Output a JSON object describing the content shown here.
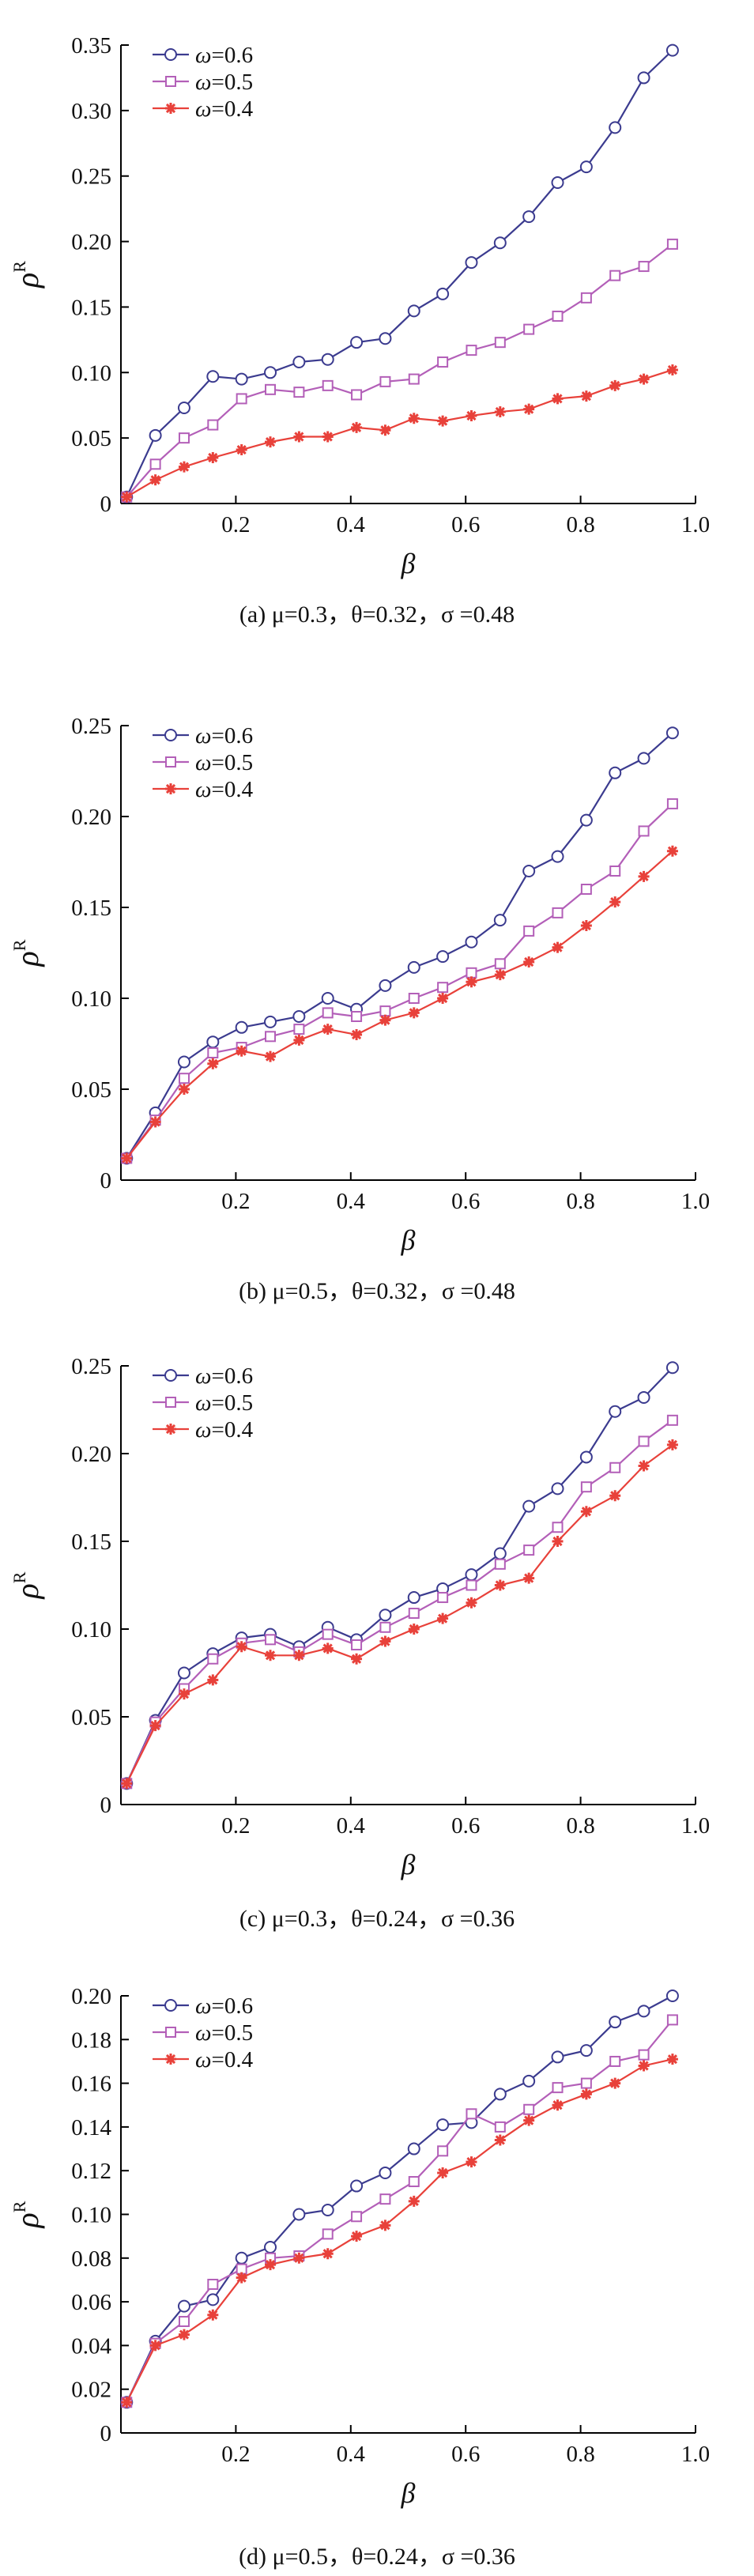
{
  "colors": {
    "omega_0_6": "#3b3b8f",
    "omega_0_5": "#b35fb8",
    "omega_0_4": "#e8413a",
    "axis": "#000000"
  },
  "chart_data": [
    {
      "type": "line",
      "caption": "(a) μ=0.3，θ=0.32，σ =0.48",
      "xlabel": "β",
      "ylabel": "ρ",
      "ylabel_sup": "R",
      "xlim": [
        0,
        1.0
      ],
      "ylim": [
        0,
        0.35
      ],
      "xticks": [
        0.2,
        0.4,
        0.6,
        0.8,
        1.0
      ],
      "xtick_labels": [
        "0.2",
        "0.4",
        "0.6",
        "0.8",
        "1.0"
      ],
      "yticks": [
        0,
        0.05,
        0.1,
        0.15,
        0.2,
        0.25,
        0.3,
        0.35
      ],
      "ytick_labels": [
        "0",
        "0.05",
        "0.10",
        "0.15",
        "0.20",
        "0.25",
        "0.30",
        "0.35"
      ],
      "legend_position": "top-left",
      "x": [
        0.01,
        0.06,
        0.11,
        0.16,
        0.21,
        0.26,
        0.31,
        0.36,
        0.41,
        0.46,
        0.51,
        0.56,
        0.61,
        0.66,
        0.71,
        0.76,
        0.81,
        0.86,
        0.91,
        0.96
      ],
      "series": [
        {
          "name": "ω=0.6",
          "marker": "circle",
          "values": [
            0.005,
            0.052,
            0.073,
            0.097,
            0.095,
            0.1,
            0.108,
            0.11,
            0.123,
            0.126,
            0.147,
            0.16,
            0.184,
            0.199,
            0.219,
            0.245,
            0.257,
            0.287,
            0.325,
            0.346
          ]
        },
        {
          "name": "ω=0.5",
          "marker": "square",
          "values": [
            0.005,
            0.03,
            0.05,
            0.06,
            0.08,
            0.087,
            0.085,
            0.09,
            0.083,
            0.093,
            0.095,
            0.108,
            0.117,
            0.123,
            0.133,
            0.143,
            0.157,
            0.174,
            0.181,
            0.198
          ]
        },
        {
          "name": "ω=0.4",
          "marker": "star",
          "values": [
            0.005,
            0.018,
            0.028,
            0.035,
            0.041,
            0.047,
            0.051,
            0.051,
            0.058,
            0.056,
            0.065,
            0.063,
            0.067,
            0.07,
            0.072,
            0.08,
            0.082,
            0.09,
            0.095,
            0.102
          ]
        }
      ]
    },
    {
      "type": "line",
      "caption": "(b) μ=0.5，θ=0.32，σ =0.48",
      "xlabel": "β",
      "ylabel": "ρ",
      "ylabel_sup": "R",
      "xlim": [
        0,
        1.0
      ],
      "ylim": [
        0,
        0.25
      ],
      "xticks": [
        0.2,
        0.4,
        0.6,
        0.8,
        1.0
      ],
      "xtick_labels": [
        "0.2",
        "0.4",
        "0.6",
        "0.8",
        "1.0"
      ],
      "yticks": [
        0,
        0.05,
        0.1,
        0.15,
        0.2,
        0.25
      ],
      "ytick_labels": [
        "0",
        "0.05",
        "0.10",
        "0.15",
        "0.20",
        "0.25"
      ],
      "legend_position": "top-left",
      "x": [
        0.01,
        0.06,
        0.11,
        0.16,
        0.21,
        0.26,
        0.31,
        0.36,
        0.41,
        0.46,
        0.51,
        0.56,
        0.61,
        0.66,
        0.71,
        0.76,
        0.81,
        0.86,
        0.91,
        0.96
      ],
      "series": [
        {
          "name": "ω=0.6",
          "marker": "circle",
          "values": [
            0.012,
            0.037,
            0.065,
            0.076,
            0.084,
            0.087,
            0.09,
            0.1,
            0.094,
            0.107,
            0.117,
            0.123,
            0.131,
            0.143,
            0.17,
            0.178,
            0.198,
            0.224,
            0.232,
            0.246
          ]
        },
        {
          "name": "ω=0.5",
          "marker": "square",
          "values": [
            0.012,
            0.033,
            0.056,
            0.07,
            0.073,
            0.079,
            0.083,
            0.092,
            0.09,
            0.093,
            0.1,
            0.106,
            0.114,
            0.119,
            0.137,
            0.147,
            0.16,
            0.17,
            0.192,
            0.207
          ]
        },
        {
          "name": "ω=0.4",
          "marker": "star",
          "values": [
            0.012,
            0.032,
            0.05,
            0.064,
            0.071,
            0.068,
            0.077,
            0.083,
            0.08,
            0.088,
            0.092,
            0.1,
            0.109,
            0.113,
            0.12,
            0.128,
            0.14,
            0.153,
            0.167,
            0.181
          ]
        }
      ]
    },
    {
      "type": "line",
      "caption": "(c) μ=0.3，θ=0.24，σ =0.36",
      "xlabel": "β",
      "ylabel": "ρ",
      "ylabel_sup": "R",
      "xlim": [
        0,
        1.0
      ],
      "ylim": [
        0,
        0.25
      ],
      "xticks": [
        0.2,
        0.4,
        0.6,
        0.8,
        1.0
      ],
      "xtick_labels": [
        "0.2",
        "0.4",
        "0.6",
        "0.8",
        "1.0"
      ],
      "yticks": [
        0,
        0.05,
        0.1,
        0.15,
        0.2,
        0.25
      ],
      "ytick_labels": [
        "0",
        "0.05",
        "0.10",
        "0.15",
        "0.20",
        "0.25"
      ],
      "legend_position": "top-left",
      "x": [
        0.01,
        0.06,
        0.11,
        0.16,
        0.21,
        0.26,
        0.31,
        0.36,
        0.41,
        0.46,
        0.51,
        0.56,
        0.61,
        0.66,
        0.71,
        0.76,
        0.81,
        0.86,
        0.91,
        0.96
      ],
      "series": [
        {
          "name": "ω=0.6",
          "marker": "circle",
          "values": [
            0.012,
            0.048,
            0.075,
            0.086,
            0.095,
            0.097,
            0.09,
            0.101,
            0.094,
            0.108,
            0.118,
            0.123,
            0.131,
            0.143,
            0.17,
            0.18,
            0.198,
            0.224,
            0.232,
            0.249
          ]
        },
        {
          "name": "ω=0.5",
          "marker": "square",
          "values": [
            0.012,
            0.047,
            0.066,
            0.083,
            0.092,
            0.094,
            0.087,
            0.097,
            0.091,
            0.101,
            0.109,
            0.118,
            0.125,
            0.137,
            0.145,
            0.158,
            0.181,
            0.192,
            0.207,
            0.219
          ]
        },
        {
          "name": "ω=0.4",
          "marker": "star",
          "values": [
            0.012,
            0.045,
            0.063,
            0.071,
            0.09,
            0.085,
            0.085,
            0.089,
            0.083,
            0.093,
            0.1,
            0.106,
            0.115,
            0.125,
            0.129,
            0.15,
            0.167,
            0.176,
            0.193,
            0.205
          ]
        }
      ]
    },
    {
      "type": "line",
      "caption": "(d) μ=0.5，θ=0.24，σ =0.36",
      "xlabel": "β",
      "ylabel": "ρ",
      "ylabel_sup": "R",
      "xlim": [
        0,
        1.0
      ],
      "ylim": [
        0,
        0.2
      ],
      "xticks": [
        0.2,
        0.4,
        0.6,
        0.8,
        1.0
      ],
      "xtick_labels": [
        "0.2",
        "0.4",
        "0.6",
        "0.8",
        "1.0"
      ],
      "yticks": [
        0,
        0.02,
        0.04,
        0.06,
        0.08,
        0.1,
        0.12,
        0.14,
        0.16,
        0.18,
        0.2
      ],
      "ytick_labels": [
        "0",
        "0.02",
        "0.04",
        "0.06",
        "0.08",
        "0.10",
        "0.12",
        "0.14",
        "0.16",
        "0.18",
        "0.20"
      ],
      "legend_position": "top-left",
      "x": [
        0.01,
        0.06,
        0.11,
        0.16,
        0.21,
        0.26,
        0.31,
        0.36,
        0.41,
        0.46,
        0.51,
        0.56,
        0.61,
        0.66,
        0.71,
        0.76,
        0.81,
        0.86,
        0.91,
        0.96
      ],
      "series": [
        {
          "name": "ω=0.6",
          "marker": "circle",
          "values": [
            0.014,
            0.042,
            0.058,
            0.061,
            0.08,
            0.085,
            0.1,
            0.102,
            0.113,
            0.119,
            0.13,
            0.141,
            0.142,
            0.155,
            0.161,
            0.172,
            0.175,
            0.188,
            0.193,
            0.2
          ]
        },
        {
          "name": "ω=0.5",
          "marker": "square",
          "values": [
            0.014,
            0.041,
            0.051,
            0.068,
            0.075,
            0.08,
            0.081,
            0.091,
            0.099,
            0.107,
            0.115,
            0.129,
            0.146,
            0.14,
            0.148,
            0.158,
            0.16,
            0.17,
            0.173,
            0.189
          ]
        },
        {
          "name": "ω=0.4",
          "marker": "star",
          "values": [
            0.014,
            0.04,
            0.045,
            0.054,
            0.071,
            0.077,
            0.08,
            0.082,
            0.09,
            0.095,
            0.106,
            0.119,
            0.124,
            0.134,
            0.143,
            0.15,
            0.155,
            0.16,
            0.168,
            0.171
          ]
        }
      ]
    }
  ]
}
